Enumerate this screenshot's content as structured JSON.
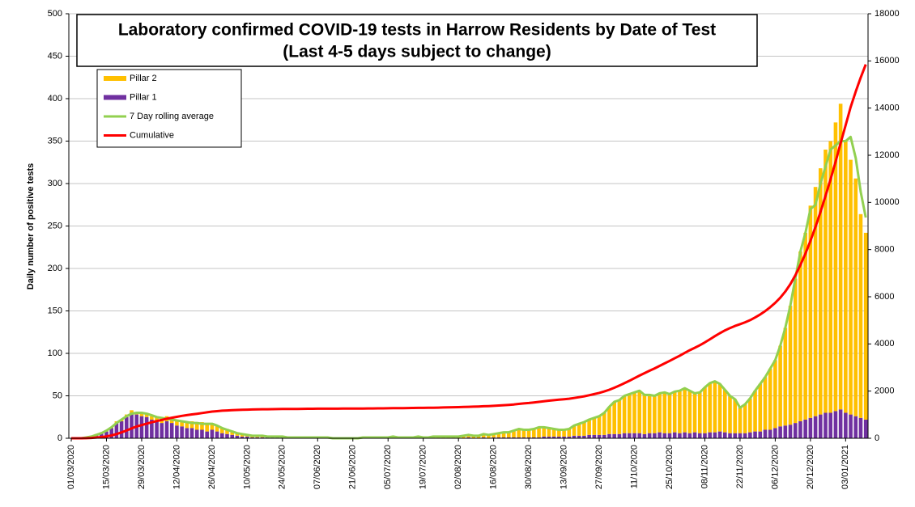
{
  "chart_data": {
    "type": "bar",
    "stacked": true,
    "title": "Laboratory confirmed COVID-19 tests in Harrow Residents by Date of Test",
    "subtitle": "(Last 4-5 days subject to change)",
    "y_label": "Daily number of positive tests",
    "ylim": [
      0,
      500
    ],
    "yticks": [
      0,
      50,
      100,
      150,
      200,
      250,
      300,
      350,
      400,
      450,
      500
    ],
    "y2lim": [
      0,
      18000
    ],
    "y2ticks": [
      0,
      2000,
      4000,
      6000,
      8000,
      10000,
      12000,
      14000,
      16000,
      18000
    ],
    "legend": "upper left",
    "categories": [
      "01/03/2020",
      null,
      null,
      null,
      null,
      null,
      null,
      "15/03/2020",
      null,
      null,
      null,
      null,
      null,
      null,
      "29/03/2020",
      null,
      null,
      null,
      null,
      null,
      null,
      "12/04/2020",
      null,
      null,
      null,
      null,
      null,
      null,
      "26/04/2020",
      null,
      null,
      null,
      null,
      null,
      null,
      "10/05/2020",
      null,
      null,
      null,
      null,
      null,
      null,
      "24/05/2020",
      null,
      null,
      null,
      null,
      null,
      null,
      "07/06/2020",
      null,
      null,
      null,
      null,
      null,
      null,
      "21/06/2020",
      null,
      null,
      null,
      null,
      null,
      null,
      "05/07/2020",
      null,
      null,
      null,
      null,
      null,
      null,
      "19/07/2020",
      null,
      null,
      null,
      null,
      null,
      null,
      "02/08/2020",
      null,
      null,
      null,
      null,
      null,
      null,
      "16/08/2020",
      null,
      null,
      null,
      null,
      null,
      null,
      "30/08/2020",
      null,
      null,
      null,
      null,
      null,
      null,
      "13/09/2020",
      null,
      null,
      null,
      null,
      null,
      null,
      "27/09/2020",
      null,
      null,
      null,
      null,
      null,
      null,
      "11/10/2020",
      null,
      null,
      null,
      null,
      null,
      null,
      "25/10/2020",
      null,
      null,
      null,
      null,
      null,
      null,
      "08/11/2020",
      null,
      null,
      null,
      null,
      null,
      null,
      "22/11/2020",
      null,
      null,
      null,
      null,
      null,
      null,
      "06/12/2020",
      null,
      null,
      null,
      null,
      null,
      null,
      "20/12/2020",
      null,
      null,
      null,
      null,
      null,
      null,
      "03/01/2021",
      null,
      null,
      null,
      null
    ],
    "series": [
      {
        "name": "Pillar 1",
        "type": "bar",
        "color": "#7030a0",
        "values": [
          0,
          0,
          0,
          1,
          2,
          4,
          6,
          8,
          12,
          18,
          20,
          25,
          30,
          28,
          26,
          25,
          22,
          20,
          18,
          20,
          18,
          15,
          14,
          12,
          12,
          10,
          10,
          8,
          10,
          8,
          6,
          5,
          4,
          3,
          2,
          2,
          1,
          1,
          1,
          1,
          1,
          1,
          1,
          0,
          1,
          0,
          0,
          1,
          0,
          0,
          0,
          0,
          0,
          0,
          0,
          0,
          0,
          0,
          0,
          0,
          0,
          0,
          0,
          0,
          0,
          0,
          0,
          0,
          0,
          0,
          0,
          0,
          0,
          0,
          0,
          0,
          0,
          0,
          0,
          1,
          0,
          0,
          1,
          0,
          1,
          1,
          1,
          1,
          1,
          1,
          1,
          1,
          1,
          1,
          2,
          2,
          2,
          2,
          2,
          2,
          3,
          3,
          3,
          4,
          4,
          4,
          4,
          5,
          5,
          5,
          6,
          6,
          6,
          6,
          5,
          6,
          6,
          7,
          6,
          6,
          7,
          6,
          7,
          6,
          7,
          6,
          6,
          7,
          7,
          8,
          7,
          6,
          6,
          6,
          6,
          7,
          8,
          8,
          10,
          10,
          12,
          14,
          15,
          16,
          18,
          20,
          22,
          24,
          26,
          28,
          30,
          30,
          32,
          34,
          30,
          28,
          26,
          24,
          22
        ]
      },
      {
        "name": "Pillar 2",
        "type": "bar",
        "color": "#ffc000",
        "values": [
          0,
          0,
          0,
          0,
          0,
          1,
          1,
          1,
          1,
          2,
          2,
          3,
          3,
          3,
          3,
          4,
          4,
          5,
          6,
          6,
          6,
          6,
          7,
          8,
          8,
          8,
          9,
          8,
          8,
          7,
          6,
          6,
          5,
          4,
          3,
          2,
          2,
          2,
          2,
          1,
          1,
          1,
          1,
          1,
          1,
          1,
          1,
          1,
          1,
          1,
          1,
          0,
          0,
          0,
          0,
          0,
          0,
          0,
          1,
          1,
          1,
          1,
          1,
          1,
          2,
          1,
          1,
          1,
          1,
          2,
          1,
          1,
          2,
          2,
          2,
          2,
          2,
          2,
          3,
          3,
          3,
          3,
          4,
          4,
          4,
          5,
          6,
          6,
          8,
          10,
          9,
          9,
          10,
          12,
          11,
          10,
          9,
          8,
          8,
          9,
          12,
          14,
          16,
          18,
          20,
          22,
          26,
          32,
          38,
          40,
          44,
          46,
          48,
          50,
          46,
          45,
          44,
          46,
          48,
          46,
          48,
          50,
          52,
          50,
          46,
          48,
          54,
          58,
          60,
          56,
          50,
          44,
          40,
          30,
          34,
          40,
          48,
          56,
          62,
          72,
          80,
          95,
          115,
          140,
          170,
          200,
          220,
          250,
          270,
          290,
          310,
          320,
          340,
          360,
          320,
          300,
          280,
          240,
          220
        ]
      },
      {
        "name": "7 Day rolling average",
        "type": "line",
        "color": "#92d050",
        "values": [
          0,
          0,
          0,
          1,
          2,
          4,
          6,
          9,
          13,
          18,
          22,
          26,
          29,
          30,
          30,
          29,
          27,
          25,
          24,
          23,
          22,
          21,
          20,
          19,
          18,
          18,
          17,
          17,
          17,
          15,
          12,
          10,
          8,
          6,
          5,
          4,
          3,
          3,
          3,
          2,
          2,
          2,
          2,
          1,
          1,
          1,
          1,
          1,
          1,
          1,
          1,
          1,
          0,
          0,
          0,
          0,
          0,
          0,
          1,
          1,
          1,
          1,
          1,
          1,
          2,
          1,
          1,
          1,
          1,
          2,
          1,
          1,
          2,
          2,
          2,
          2,
          2,
          2,
          3,
          4,
          3,
          3,
          5,
          4,
          5,
          6,
          7,
          7,
          9,
          11,
          10,
          10,
          11,
          13,
          13,
          12,
          11,
          10,
          10,
          11,
          15,
          17,
          19,
          22,
          24,
          26,
          30,
          37,
          43,
          45,
          50,
          52,
          54,
          56,
          51,
          51,
          50,
          53,
          54,
          52,
          55,
          56,
          59,
          56,
          53,
          54,
          60,
          65,
          67,
          64,
          57,
          50,
          46,
          36,
          40,
          47,
          56,
          64,
          72,
          82,
          92,
          109,
          130,
          156,
          188,
          220,
          242,
          270,
          275,
          300,
          320,
          340,
          345,
          350,
          350,
          355,
          330,
          290,
          260
        ]
      },
      {
        "name": "Cumulative",
        "type": "line",
        "axis": "y2",
        "color": "#ff0000",
        "values": [
          0,
          0,
          0,
          5,
          15,
          30,
          50,
          80,
          120,
          180,
          250,
          330,
          420,
          500,
          560,
          620,
          680,
          730,
          780,
          830,
          870,
          910,
          950,
          980,
          1010,
          1040,
          1070,
          1100,
          1130,
          1150,
          1170,
          1180,
          1190,
          1200,
          1210,
          1215,
          1220,
          1225,
          1230,
          1232,
          1235,
          1238,
          1240,
          1242,
          1244,
          1246,
          1248,
          1250,
          1252,
          1254,
          1255,
          1256,
          1256,
          1256,
          1257,
          1258,
          1258,
          1260,
          1262,
          1264,
          1266,
          1268,
          1270,
          1272,
          1275,
          1278,
          1280,
          1282,
          1285,
          1288,
          1290,
          1292,
          1296,
          1300,
          1305,
          1310,
          1315,
          1320,
          1326,
          1332,
          1340,
          1348,
          1356,
          1366,
          1376,
          1388,
          1402,
          1416,
          1434,
          1456,
          1476,
          1496,
          1518,
          1544,
          1570,
          1594,
          1616,
          1636,
          1656,
          1678,
          1708,
          1742,
          1780,
          1824,
          1872,
          1924,
          1984,
          2058,
          2144,
          2234,
          2334,
          2438,
          2546,
          2658,
          2760,
          2862,
          2962,
          3068,
          3176,
          3280,
          3390,
          3502,
          3620,
          3732,
          3838,
          3946,
          4066,
          4196,
          4330,
          4458,
          4572,
          4672,
          4764,
          4836,
          4916,
          5010,
          5122,
          5250,
          5394,
          5558,
          5742,
          5960,
          6220,
          6532,
          6908,
          7348,
          7832,
          8372,
          8962,
          9598,
          10278,
          10978,
          11722,
          12510,
          13270,
          14040,
          14700,
          15300,
          15850
        ]
      }
    ]
  }
}
